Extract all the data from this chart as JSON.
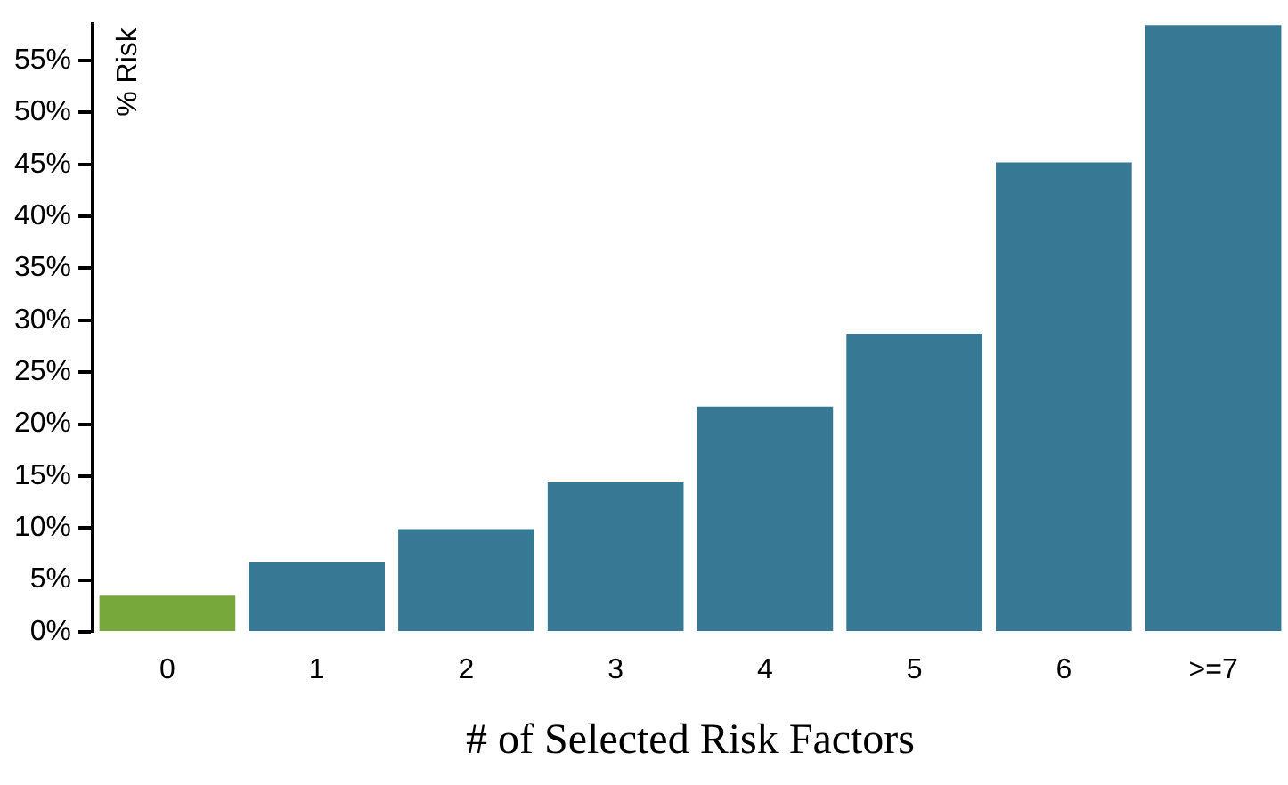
{
  "chart_data": {
    "type": "bar",
    "xlabel": "# of Selected Risk Factors",
    "ylabel": "% Risk",
    "categories": [
      "0",
      "1",
      "2",
      "3",
      "4",
      "5",
      "6",
      ">=7"
    ],
    "values": [
      3.5,
      6.7,
      9.9,
      14.4,
      21.7,
      28.7,
      45.2,
      58.4
    ],
    "colors": [
      "#76a83b",
      "#377894",
      "#377894",
      "#377894",
      "#377894",
      "#377894",
      "#377894",
      "#377894"
    ],
    "ylim": [
      0,
      58.5
    ],
    "yticks": [
      {
        "value": 0,
        "label": "0%"
      },
      {
        "value": 5,
        "label": "5%"
      },
      {
        "value": 10,
        "label": "10%"
      },
      {
        "value": 15,
        "label": "15%"
      },
      {
        "value": 20,
        "label": "20%"
      },
      {
        "value": 25,
        "label": "25%"
      },
      {
        "value": 30,
        "label": "30%"
      },
      {
        "value": 35,
        "label": "35%"
      },
      {
        "value": 40,
        "label": "40%"
      },
      {
        "value": 45,
        "label": "45%"
      },
      {
        "value": 50,
        "label": "50%"
      },
      {
        "value": 55,
        "label": "55%"
      }
    ],
    "grid": false
  }
}
